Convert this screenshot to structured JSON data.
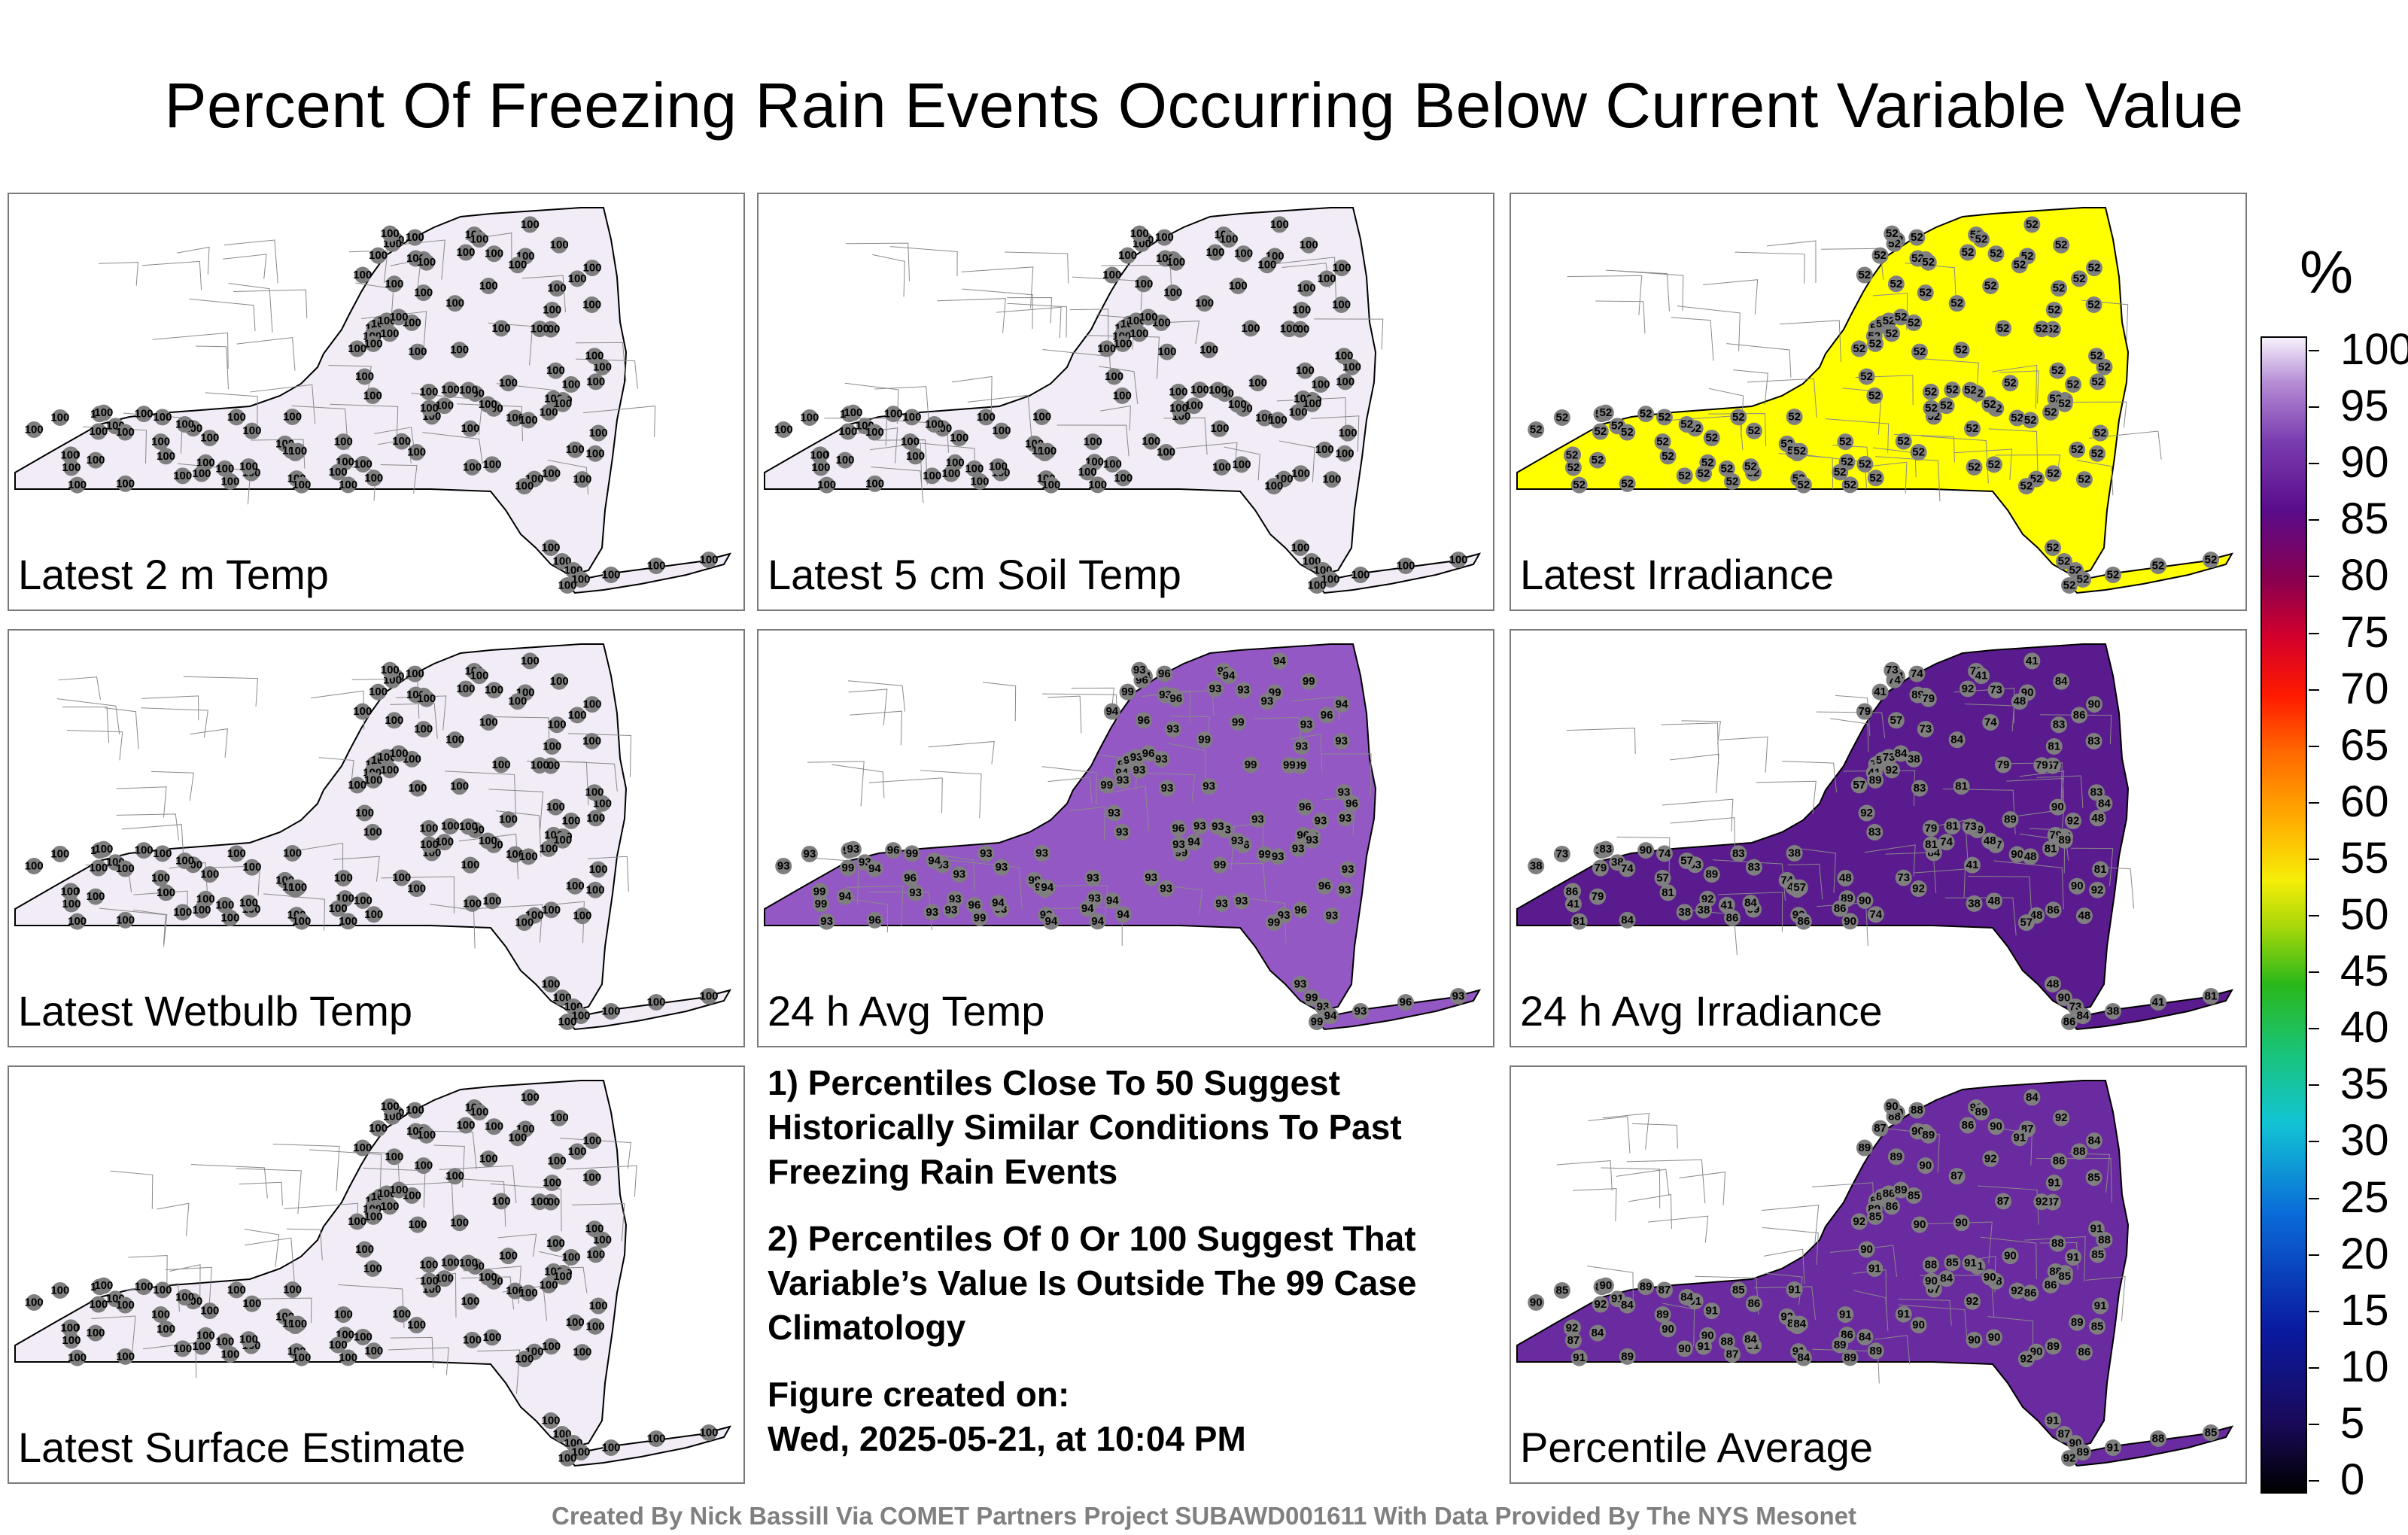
{
  "title": "Percent Of Freezing Rain Events Occurring Below Current Variable Value",
  "panels": [
    {
      "label": "Latest 2 m Temp",
      "fill": "#f1ecf6",
      "values": [
        100
      ]
    },
    {
      "label": "Latest 5 cm Soil Temp",
      "fill": "#f1ecf6",
      "values": [
        100
      ]
    },
    {
      "label": "Latest Irradiance",
      "fill": "#ffff00",
      "values": [
        52
      ]
    },
    {
      "label": "Latest Wetbulb Temp",
      "fill": "#f1ecf6",
      "values": [
        100
      ]
    },
    {
      "label": "24 h Avg Temp",
      "fill": "#9458c4",
      "values": [
        93,
        94,
        93,
        96,
        93,
        99
      ]
    },
    {
      "label": "24 h Avg Irradiance",
      "fill": "#5a1b8e",
      "values": [
        89,
        79,
        83,
        74,
        92,
        57,
        48,
        90,
        73,
        84,
        38,
        41,
        81,
        86
      ]
    },
    {
      "label": "Latest Surface Estimate",
      "fill": "#f1ecf6",
      "values": [
        100
      ]
    },
    {
      "label": "Percentile Average",
      "fill": "#6a2aa0",
      "values": [
        90,
        89,
        91,
        88,
        85,
        92,
        86,
        84,
        90,
        89,
        91,
        87
      ]
    }
  ],
  "notes": {
    "line1": "1) Percentiles Close To 50 Suggest Historically Similar Conditions To Past Freezing Rain Events",
    "line2": "2) Percentiles Of 0 Or 100 Suggest That Variable’s Value Is Outside The 99 Case Climatology",
    "line3_title": "Figure created on:",
    "line3_date": "Wed, 2025-05-21, at 10:04 PM"
  },
  "credit": "Created By Nick Bassill Via COMET Partners Project SUBAWD001611 With Data Provided By The NYS Mesonet",
  "colorbar": {
    "unit": "%",
    "ticks": [
      "100",
      "95",
      "90",
      "85",
      "80",
      "75",
      "70",
      "65",
      "60",
      "55",
      "50",
      "45",
      "40",
      "35",
      "30",
      "25",
      "20",
      "15",
      "10",
      "5",
      "0"
    ]
  }
}
